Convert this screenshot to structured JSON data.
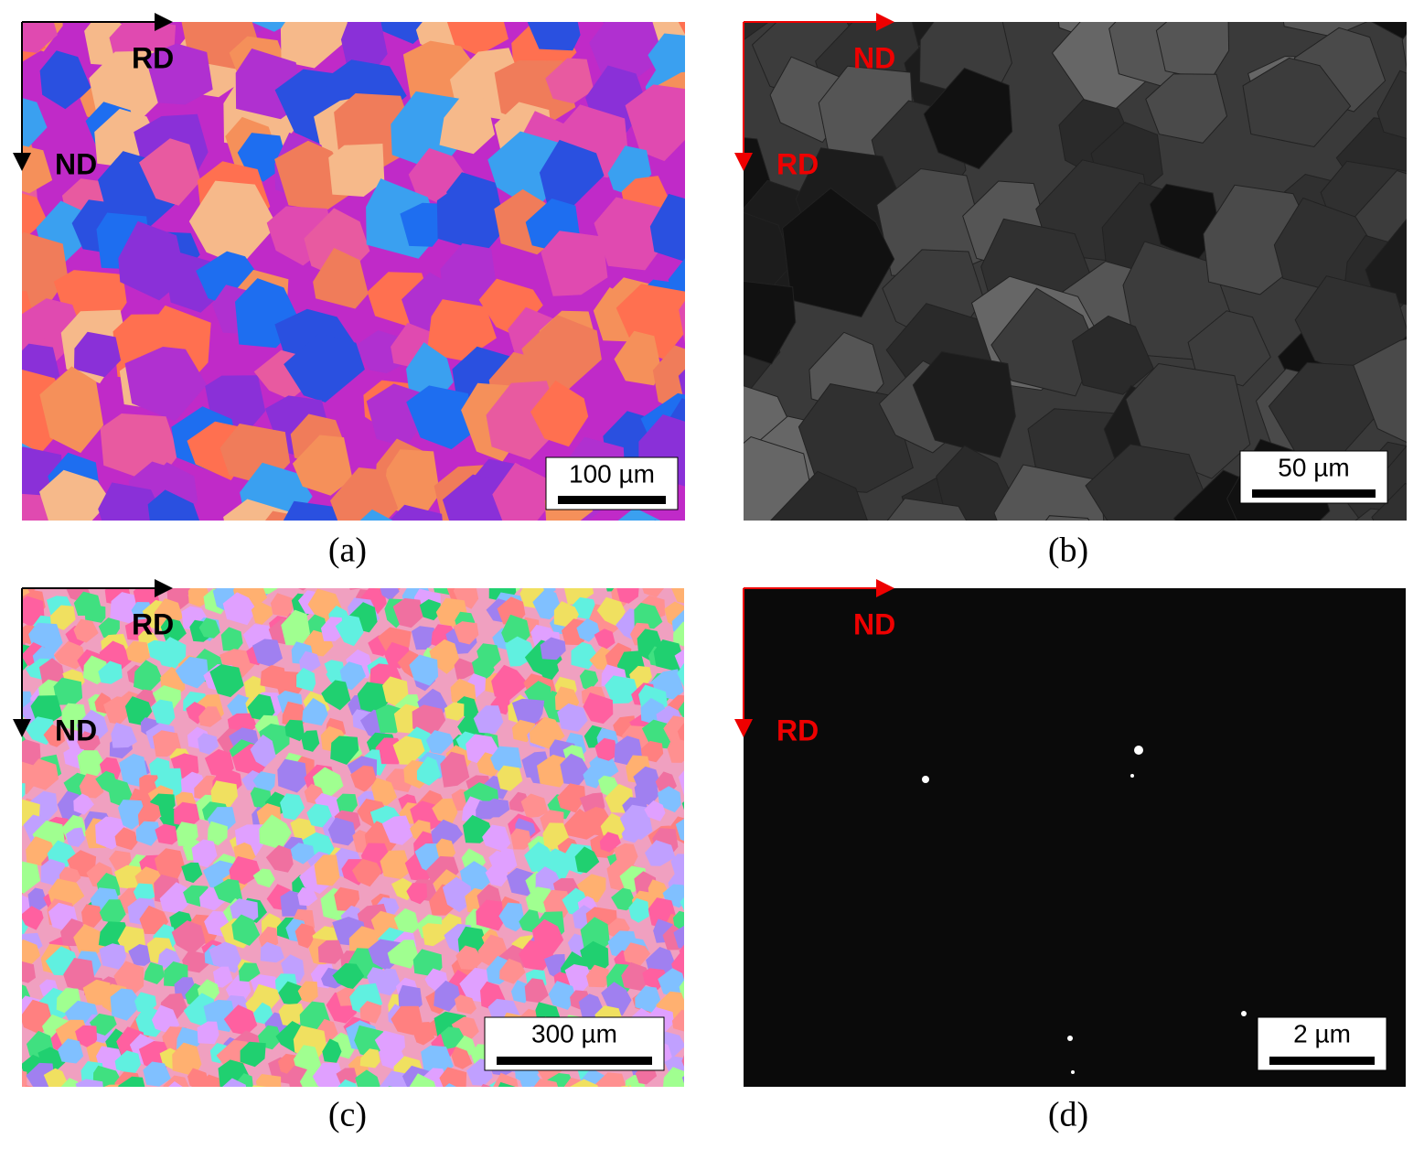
{
  "panels": [
    {
      "caption": "(a)",
      "labels": [
        "RD",
        "ND"
      ],
      "scale_bar": "100 µm"
    },
    {
      "caption": "(b)",
      "labels": [
        "ND",
        "RD"
      ],
      "scale_bar": "50 µm"
    },
    {
      "caption": "(c)",
      "labels": [
        "RD",
        "ND"
      ],
      "scale_bar": "300 µm"
    },
    {
      "caption": "(d)",
      "labels": [
        "ND",
        "RD"
      ],
      "scale_bar": "2 µm"
    }
  ]
}
